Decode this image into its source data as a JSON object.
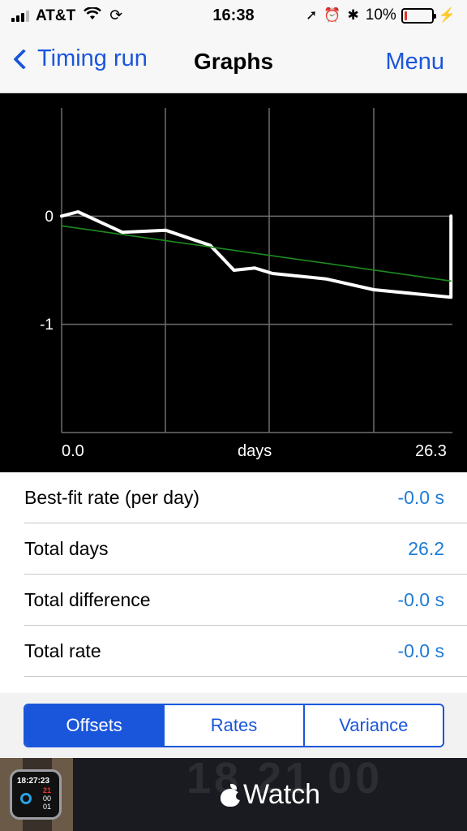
{
  "status_bar": {
    "carrier": "AT&T",
    "time": "16:38",
    "battery_percent": "10%",
    "battery_level": 0.1,
    "icons": [
      "signal-icon",
      "wifi-icon",
      "sync-icon",
      "location-icon",
      "alarm-icon",
      "bluetooth-icon",
      "battery-icon",
      "charging-icon"
    ]
  },
  "nav": {
    "back_label": "Timing run",
    "title": "Graphs",
    "menu_label": "Menu"
  },
  "chart_data": {
    "type": "line",
    "xlabel": "days",
    "x_tick_labels": [
      "0.0",
      "26.3"
    ],
    "y_tick_labels": [
      "0",
      "-1"
    ],
    "xlim": [
      0,
      26.3
    ],
    "ylim": [
      -2,
      1
    ],
    "grid": true,
    "series": [
      {
        "color": "#ffffff",
        "x": [
          0,
          1.1,
          4.1,
          7.0,
          10.0,
          10.5,
          11.6,
          13.0,
          14.2,
          17.8,
          21.0,
          26.2,
          26.2
        ],
        "y": [
          0.0,
          0.04,
          -0.15,
          -0.13,
          -0.27,
          -0.34,
          -0.5,
          -0.48,
          -0.53,
          -0.58,
          -0.68,
          -0.75,
          0.0
        ]
      },
      {
        "color": "#1e8c1e",
        "x": [
          0,
          26.2
        ],
        "y": [
          -0.09,
          -0.6
        ]
      }
    ]
  },
  "stats": [
    {
      "label": "Best-fit rate (per day)",
      "value": "-0.0 s"
    },
    {
      "label": "Total days",
      "value": "26.2"
    },
    {
      "label": "Total difference",
      "value": "-0.0 s"
    },
    {
      "label": "Total rate",
      "value": "-0.0 s"
    }
  ],
  "segments": {
    "offsets": "Offsets",
    "rates": "Rates",
    "variance": "Variance",
    "selected": "Offsets"
  },
  "ad": {
    "brand": "Watch",
    "watch_time": "18:27:23",
    "watch_digits": [
      "21",
      "00",
      "01"
    ],
    "background_digits": "18 21 00"
  }
}
